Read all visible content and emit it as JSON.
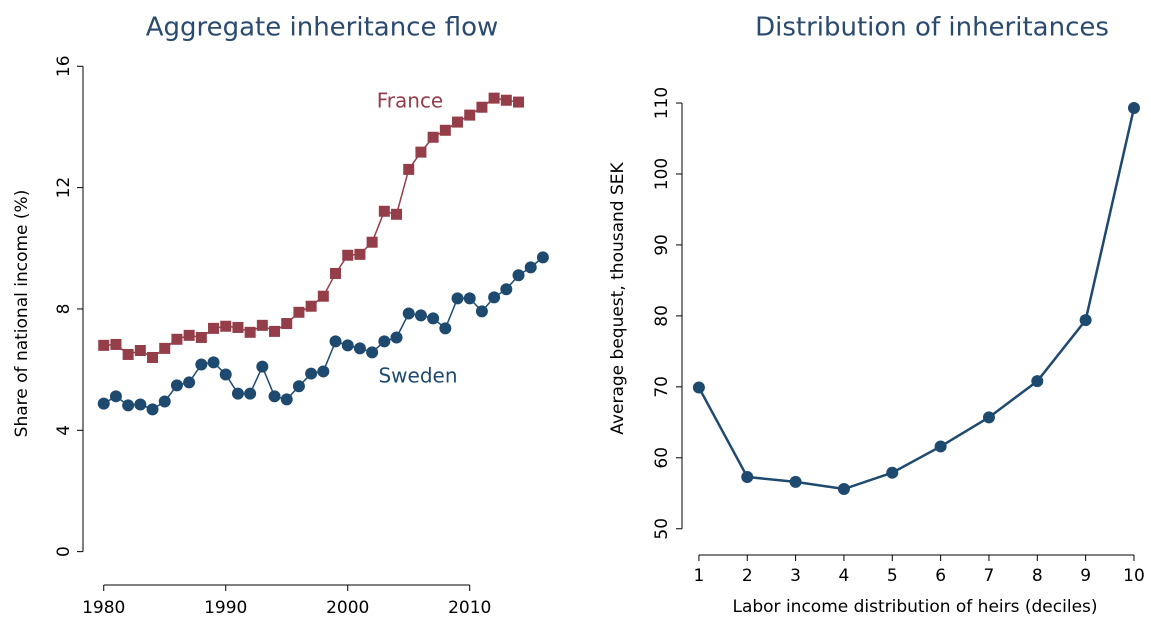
{
  "chart_data": [
    {
      "type": "line",
      "title": "Aggregate inheritance flow",
      "y_label": "Share of national income (%)",
      "x": [
        1980,
        1981,
        1982,
        1983,
        1984,
        1985,
        1986,
        1987,
        1988,
        1989,
        1990,
        1991,
        1992,
        1993,
        1994,
        1995,
        1996,
        1997,
        1998,
        1999,
        2000,
        2001,
        2002,
        2003,
        2004,
        2005,
        2006,
        2007,
        2008,
        2009,
        2010,
        2011,
        2012,
        2013,
        2014,
        2015,
        2016
      ],
      "series": [
        {
          "name": "France",
          "color": "#943e4a",
          "marker": "square",
          "values": [
            6.8,
            6.83,
            6.5,
            6.63,
            6.4,
            6.7,
            7.0,
            7.13,
            7.06,
            7.36,
            7.43,
            7.39,
            7.23,
            7.46,
            7.26,
            7.52,
            7.89,
            8.09,
            8.42,
            9.17,
            9.77,
            9.8,
            10.2,
            11.22,
            11.12,
            12.6,
            13.17,
            13.66,
            13.89,
            14.16,
            14.39,
            14.65,
            14.95,
            14.88,
            14.82,
            null,
            null
          ]
        },
        {
          "name": "Sweden",
          "color": "#1f4a70",
          "marker": "circle",
          "values": [
            4.88,
            5.12,
            4.82,
            4.85,
            4.69,
            4.95,
            5.48,
            5.58,
            6.17,
            6.24,
            5.84,
            5.21,
            5.21,
            6.1,
            5.12,
            5.02,
            5.45,
            5.87,
            5.94,
            6.93,
            6.8,
            6.7,
            6.57,
            6.93,
            7.06,
            7.85,
            7.79,
            7.69,
            7.36,
            8.35,
            8.35,
            7.92,
            8.38,
            8.65,
            9.11,
            9.37,
            9.7
          ]
        }
      ],
      "xlim": [
        1978.3,
        2017.4
      ],
      "xticks": [
        1980,
        1990,
        2000,
        2010
      ],
      "ylim": [
        -1.1,
        16.8
      ],
      "yticks": [
        0,
        4,
        8,
        12,
        16
      ]
    },
    {
      "type": "line",
      "title": "Distribution of inheritances",
      "y_label": "Average bequest, thousand SEK",
      "x_label": "Labor income distribution of heirs (deciles)",
      "x": [
        1,
        2,
        3,
        4,
        5,
        6,
        7,
        8,
        9,
        10
      ],
      "series": [
        {
          "name": null,
          "color": "#1f4a70",
          "marker": "circle",
          "values": [
            69.9,
            57.3,
            56.6,
            55.6,
            57.9,
            61.6,
            65.7,
            70.8,
            79.4,
            109.3
          ]
        }
      ],
      "xlim": [
        0.65,
        10.29
      ],
      "xticks": [
        1,
        2,
        3,
        4,
        5,
        6,
        7,
        8,
        9,
        10
      ],
      "ylim": [
        46.3,
        118.6
      ],
      "yticks": [
        50,
        60,
        70,
        80,
        90,
        100,
        110
      ]
    }
  ]
}
